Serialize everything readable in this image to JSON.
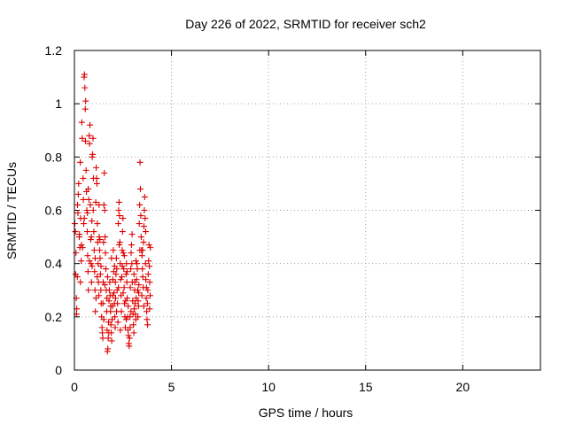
{
  "chart_data": {
    "type": "scatter",
    "title": "Day 226 of 2022, SRMTID for receiver sch2",
    "xlabel": "GPS time / hours",
    "ylabel": "SRMTID / TECUs",
    "xlim": [
      0,
      24
    ],
    "ylim": [
      0,
      1.2
    ],
    "xticks": [
      0,
      5,
      10,
      15,
      20
    ],
    "xtick_labels": [
      "0",
      "5",
      "10",
      "15",
      "20"
    ],
    "yticks": [
      0,
      0.2,
      0.4,
      0.6,
      0.8,
      1.0,
      1.2
    ],
    "ytick_labels": [
      "0",
      "0.2",
      "0.4",
      "0.6",
      "0.8",
      "1",
      "1.2"
    ],
    "grid": true,
    "marker": "+",
    "marker_color": "#dd0000",
    "series": [
      {
        "name": "SRMTID",
        "points": [
          [
            0.02,
            0.55
          ],
          [
            0.05,
            0.52
          ],
          [
            0.08,
            0.44
          ],
          [
            0.1,
            0.27
          ],
          [
            0.12,
            0.23
          ],
          [
            0.15,
            0.35
          ],
          [
            0.18,
            0.59
          ],
          [
            0.2,
            0.66
          ],
          [
            0.22,
            0.7
          ],
          [
            0.25,
            0.5
          ],
          [
            0.28,
            0.46
          ],
          [
            0.3,
            0.78
          ],
          [
            0.32,
            0.57
          ],
          [
            0.35,
            0.41
          ],
          [
            0.38,
            0.93
          ],
          [
            0.4,
            0.87
          ],
          [
            0.42,
            0.46
          ],
          [
            0.45,
            0.72
          ],
          [
            0.48,
            0.55
          ],
          [
            0.5,
            1.1
          ],
          [
            0.52,
            1.11
          ],
          [
            0.54,
            1.06
          ],
          [
            0.56,
            0.98
          ],
          [
            0.58,
            1.01
          ],
          [
            0.6,
            0.75
          ],
          [
            0.62,
            0.67
          ],
          [
            0.64,
            0.6
          ],
          [
            0.66,
            0.52
          ],
          [
            0.68,
            0.43
          ],
          [
            0.7,
            0.37
          ],
          [
            0.72,
            0.3
          ],
          [
            0.74,
            0.64
          ],
          [
            0.76,
            0.88
          ],
          [
            0.78,
            0.85
          ],
          [
            0.8,
            0.92
          ],
          [
            0.82,
            0.62
          ],
          [
            0.84,
            0.49
          ],
          [
            0.86,
            0.4
          ],
          [
            0.88,
            0.33
          ],
          [
            0.9,
            0.56
          ],
          [
            0.92,
            0.8
          ],
          [
            0.94,
            0.81
          ],
          [
            0.96,
            0.87
          ],
          [
            0.98,
            0.72
          ],
          [
            1.0,
            0.52
          ],
          [
            1.02,
            0.45
          ],
          [
            1.04,
            0.37
          ],
          [
            1.06,
            0.3
          ],
          [
            1.08,
            0.22
          ],
          [
            1.1,
            0.63
          ],
          [
            1.12,
            0.76
          ],
          [
            1.14,
            0.72
          ],
          [
            1.16,
            0.7
          ],
          [
            1.18,
            0.55
          ],
          [
            1.2,
            0.48
          ],
          [
            1.22,
            0.4
          ],
          [
            1.24,
            0.33
          ],
          [
            1.26,
            0.28
          ],
          [
            1.28,
            0.5
          ],
          [
            1.3,
            0.45
          ],
          [
            1.32,
            0.42
          ],
          [
            1.34,
            0.36
          ],
          [
            1.36,
            0.3
          ],
          [
            1.38,
            0.25
          ],
          [
            1.4,
            0.2
          ],
          [
            1.42,
            0.16
          ],
          [
            1.44,
            0.14
          ],
          [
            1.46,
            0.12
          ],
          [
            1.48,
            0.33
          ],
          [
            1.5,
            0.48
          ],
          [
            1.52,
            0.62
          ],
          [
            1.54,
            0.74
          ],
          [
            1.56,
            0.6
          ],
          [
            1.58,
            0.5
          ],
          [
            1.6,
            0.44
          ],
          [
            1.62,
            0.38
          ],
          [
            1.64,
            0.3
          ],
          [
            1.66,
            0.22
          ],
          [
            1.68,
            0.15
          ],
          [
            1.7,
            0.07
          ],
          [
            1.72,
            0.08
          ],
          [
            1.74,
            0.12
          ],
          [
            1.76,
            0.18
          ],
          [
            1.78,
            0.26
          ],
          [
            1.8,
            0.3
          ],
          [
            1.82,
            0.33
          ],
          [
            1.84,
            0.28
          ],
          [
            1.86,
            0.22
          ],
          [
            1.88,
            0.17
          ],
          [
            1.9,
            0.14
          ],
          [
            1.92,
            0.11
          ],
          [
            1.94,
            0.19
          ],
          [
            1.96,
            0.24
          ],
          [
            1.98,
            0.34
          ],
          [
            2.0,
            0.45
          ],
          [
            2.02,
            0.37
          ],
          [
            2.04,
            0.29
          ],
          [
            2.06,
            0.25
          ],
          [
            2.08,
            0.2
          ],
          [
            2.1,
            0.16
          ],
          [
            2.12,
            0.27
          ],
          [
            2.14,
            0.36
          ],
          [
            2.16,
            0.42
          ],
          [
            2.18,
            0.38
          ],
          [
            2.2,
            0.3
          ],
          [
            2.22,
            0.25
          ],
          [
            2.24,
            0.18
          ],
          [
            2.26,
            0.55
          ],
          [
            2.28,
            0.6
          ],
          [
            2.3,
            0.63
          ],
          [
            2.32,
            0.58
          ],
          [
            2.34,
            0.48
          ],
          [
            2.36,
            0.4
          ],
          [
            2.38,
            0.34
          ],
          [
            2.4,
            0.28
          ],
          [
            2.42,
            0.22
          ],
          [
            2.44,
            0.35
          ],
          [
            2.46,
            0.45
          ],
          [
            2.48,
            0.52
          ],
          [
            2.5,
            0.57
          ],
          [
            2.52,
            0.44
          ],
          [
            2.54,
            0.38
          ],
          [
            2.56,
            0.31
          ],
          [
            2.58,
            0.25
          ],
          [
            2.6,
            0.2
          ],
          [
            2.62,
            0.16
          ],
          [
            2.64,
            0.26
          ],
          [
            2.66,
            0.36
          ],
          [
            2.68,
            0.4
          ],
          [
            2.7,
            0.33
          ],
          [
            2.72,
            0.27
          ],
          [
            2.74,
            0.2
          ],
          [
            2.76,
            0.15
          ],
          [
            2.78,
            0.13
          ],
          [
            2.8,
            0.1
          ],
          [
            2.82,
            0.09
          ],
          [
            2.84,
            0.12
          ],
          [
            2.86,
            0.2
          ],
          [
            2.88,
            0.31
          ],
          [
            2.9,
            0.38
          ],
          [
            2.92,
            0.44
          ],
          [
            2.94,
            0.47
          ],
          [
            2.96,
            0.4
          ],
          [
            2.98,
            0.33
          ],
          [
            3.0,
            0.26
          ],
          [
            3.02,
            0.21
          ],
          [
            3.04,
            0.17
          ],
          [
            3.06,
            0.14
          ],
          [
            3.08,
            0.23
          ],
          [
            3.1,
            0.3
          ],
          [
            3.12,
            0.25
          ],
          [
            3.14,
            0.21
          ],
          [
            3.16,
            0.19
          ],
          [
            3.18,
            0.27
          ],
          [
            3.2,
            0.34
          ],
          [
            3.22,
            0.4
          ],
          [
            3.24,
            0.38
          ],
          [
            3.26,
            0.3
          ],
          [
            3.28,
            0.26
          ],
          [
            3.3,
            0.24
          ],
          [
            3.32,
            0.32
          ],
          [
            3.34,
            0.55
          ],
          [
            3.36,
            0.62
          ],
          [
            3.38,
            0.78
          ],
          [
            3.4,
            0.68
          ],
          [
            3.42,
            0.58
          ],
          [
            3.44,
            0.5
          ],
          [
            3.46,
            0.45
          ],
          [
            3.48,
            0.43
          ],
          [
            3.5,
            0.38
          ],
          [
            3.52,
            0.35
          ],
          [
            3.54,
            0.31
          ],
          [
            3.56,
            0.48
          ],
          [
            3.58,
            0.54
          ],
          [
            3.6,
            0.6
          ],
          [
            3.62,
            0.65
          ],
          [
            3.64,
            0.57
          ],
          [
            3.66,
            0.4
          ],
          [
            3.68,
            0.34
          ],
          [
            3.7,
            0.27
          ],
          [
            3.72,
            0.22
          ],
          [
            3.74,
            0.19
          ],
          [
            3.76,
            0.25
          ],
          [
            3.78,
            0.3
          ],
          [
            3.8,
            0.36
          ],
          [
            3.82,
            0.41
          ],
          [
            3.84,
            0.47
          ],
          [
            3.86,
            0.39
          ],
          [
            3.88,
            0.33
          ],
          [
            3.9,
            0.28
          ],
          [
            0.06,
            0.36
          ],
          [
            0.16,
            0.62
          ],
          [
            0.26,
            0.51
          ],
          [
            0.36,
            0.47
          ],
          [
            0.46,
            0.64
          ],
          [
            0.57,
            0.86
          ],
          [
            0.67,
            0.59
          ],
          [
            0.77,
            0.41
          ],
          [
            0.87,
            0.5
          ],
          [
            0.97,
            0.6
          ],
          [
            1.07,
            0.42
          ],
          [
            1.17,
            0.35
          ],
          [
            1.27,
            0.62
          ],
          [
            1.37,
            0.39
          ],
          [
            1.47,
            0.25
          ],
          [
            1.57,
            0.32
          ],
          [
            1.67,
            0.27
          ],
          [
            1.77,
            0.14
          ],
          [
            1.87,
            0.24
          ],
          [
            1.97,
            0.28
          ],
          [
            2.07,
            0.39
          ],
          [
            2.17,
            0.22
          ],
          [
            2.27,
            0.31
          ],
          [
            2.37,
            0.15
          ],
          [
            2.47,
            0.39
          ],
          [
            2.57,
            0.43
          ],
          [
            2.67,
            0.19
          ],
          [
            2.77,
            0.24
          ],
          [
            2.87,
            0.16
          ],
          [
            2.97,
            0.51
          ],
          [
            3.07,
            0.36
          ],
          [
            3.17,
            0.41
          ],
          [
            3.27,
            0.2
          ],
          [
            3.37,
            0.45
          ],
          [
            3.47,
            0.28
          ],
          [
            3.57,
            0.24
          ],
          [
            3.67,
            0.52
          ],
          [
            3.77,
            0.17
          ],
          [
            3.87,
            0.23
          ],
          [
            0.11,
            0.21
          ],
          [
            0.31,
            0.33
          ],
          [
            0.51,
            0.57
          ],
          [
            0.71,
            0.68
          ],
          [
            0.91,
            0.39
          ],
          [
            1.11,
            0.27
          ],
          [
            1.31,
            0.49
          ],
          [
            1.51,
            0.19
          ],
          [
            1.71,
            0.35
          ],
          [
            1.91,
            0.42
          ],
          [
            2.11,
            0.33
          ],
          [
            2.31,
            0.47
          ],
          [
            2.51,
            0.29
          ],
          [
            2.71,
            0.37
          ],
          [
            2.91,
            0.22
          ],
          [
            3.11,
            0.33
          ],
          [
            3.31,
            0.29
          ],
          [
            3.51,
            0.45
          ],
          [
            3.71,
            0.31
          ],
          [
            3.91,
            0.46
          ]
        ]
      }
    ]
  }
}
